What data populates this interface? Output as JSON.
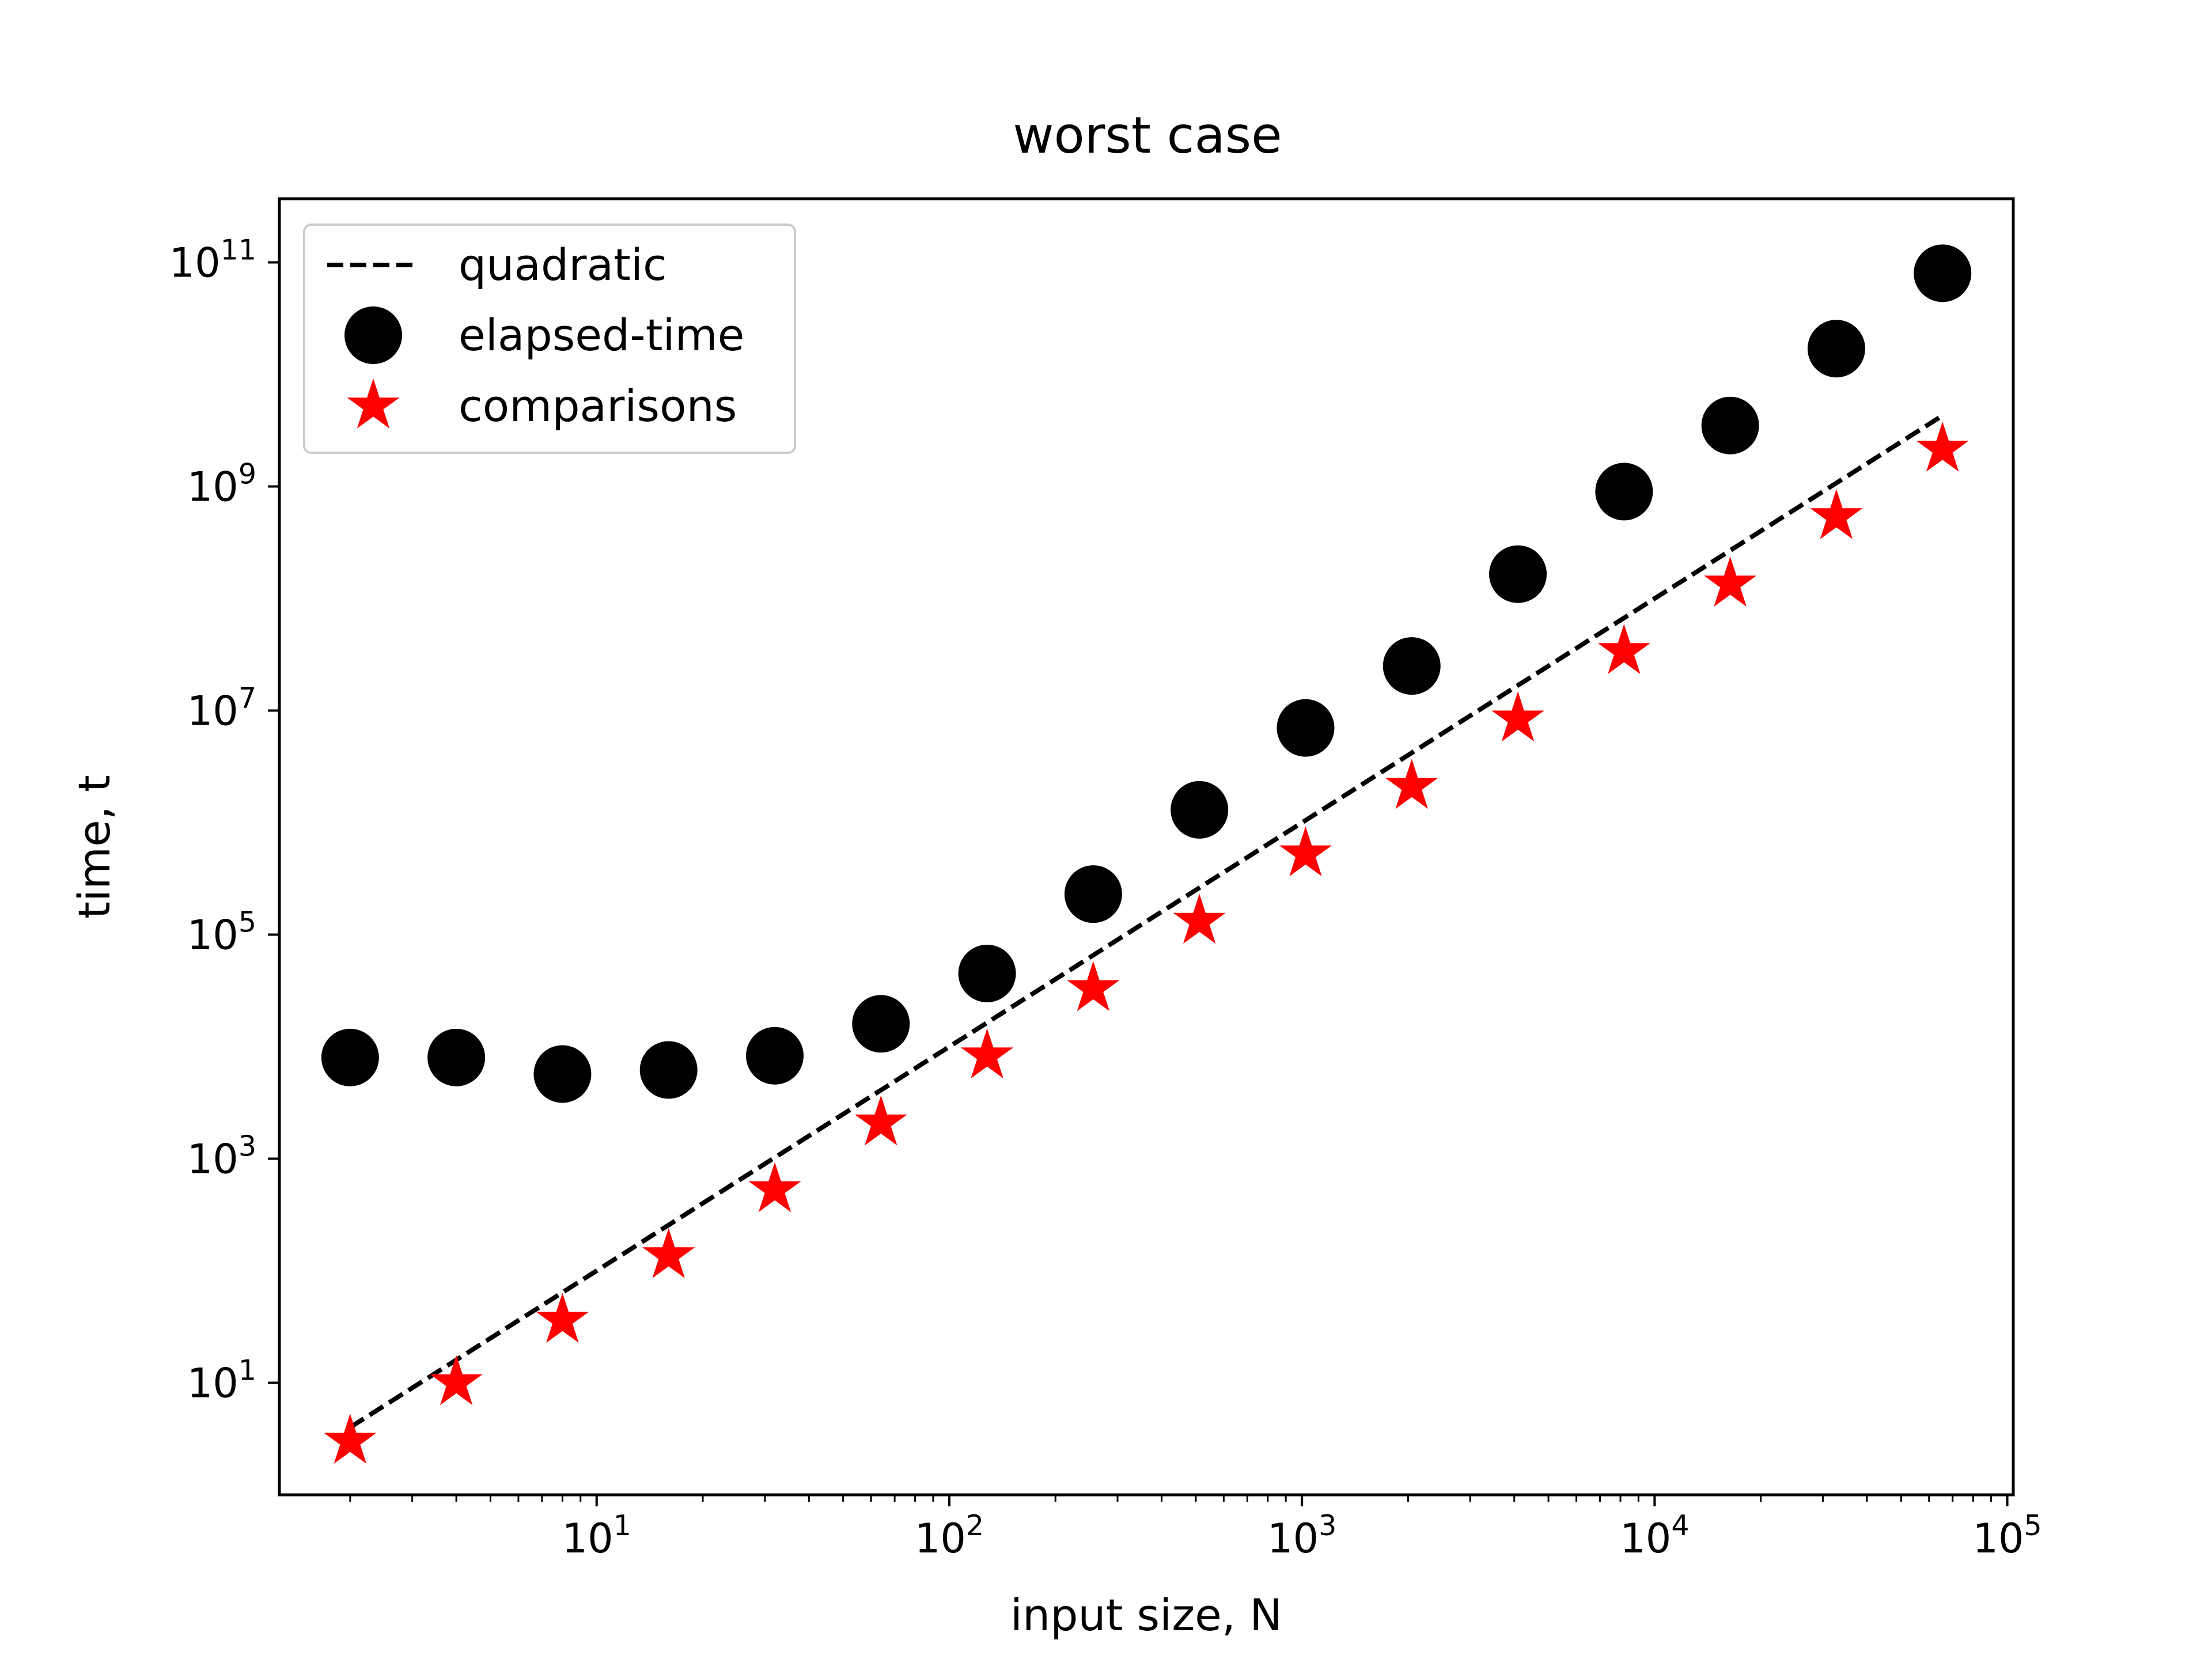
{
  "chart_data": {
    "type": "scatter",
    "title": "worst case",
    "xlabel": "input size, N",
    "ylabel": "time, t",
    "xscale": "log",
    "yscale": "log",
    "xlim": [
      1.26,
      104000
    ],
    "ylim": [
      1.0,
      370000000000
    ],
    "grid": false,
    "legend_position": "upper-left",
    "x_ticks": [
      {
        "value": 10,
        "base": "10",
        "exp": "1"
      },
      {
        "value": 100,
        "base": "10",
        "exp": "2"
      },
      {
        "value": 1000,
        "base": "10",
        "exp": "3"
      },
      {
        "value": 10000,
        "base": "10",
        "exp": "4"
      },
      {
        "value": 100000,
        "base": "10",
        "exp": "5"
      }
    ],
    "y_ticks": [
      {
        "value": 10,
        "base": "10",
        "exp": "1"
      },
      {
        "value": 1000,
        "base": "10",
        "exp": "3"
      },
      {
        "value": 100000,
        "base": "10",
        "exp": "5"
      },
      {
        "value": 10000000,
        "base": "10",
        "exp": "7"
      },
      {
        "value": 1000000000,
        "base": "10",
        "exp": "9"
      },
      {
        "value": 100000000000,
        "base": "10",
        "exp": "11"
      }
    ],
    "x": [
      2,
      4,
      8,
      16,
      32,
      64,
      128,
      256,
      512,
      1024,
      2048,
      4096,
      8192,
      16384,
      32768,
      65536
    ],
    "series": [
      {
        "name": "quadratic",
        "kind": "line",
        "style": "dashed",
        "color": "#000000",
        "values": [
          4,
          16,
          64,
          256,
          1024,
          4096,
          16384,
          65536,
          262144,
          1048576,
          4194304,
          16777216,
          67108864,
          268435456,
          1073741824,
          4294967296
        ]
      },
      {
        "name": "elapsed-time",
        "kind": "marker",
        "marker": "circle",
        "color": "#000000",
        "values": [
          8000,
          8000,
          5700,
          6200,
          8300,
          16000,
          45000,
          230000,
          1300000,
          7000000,
          25000000,
          165000000,
          900000000,
          3500000000,
          17000000000,
          80000000000
        ]
      },
      {
        "name": "comparisons",
        "kind": "marker",
        "marker": "star",
        "color": "#ff0000",
        "values": [
          3,
          10,
          36,
          136,
          528,
          2080,
          8256,
          32896,
          131328,
          524800,
          2098176,
          8390656,
          33558528,
          134225920,
          536887296,
          2147516416
        ]
      }
    ]
  }
}
